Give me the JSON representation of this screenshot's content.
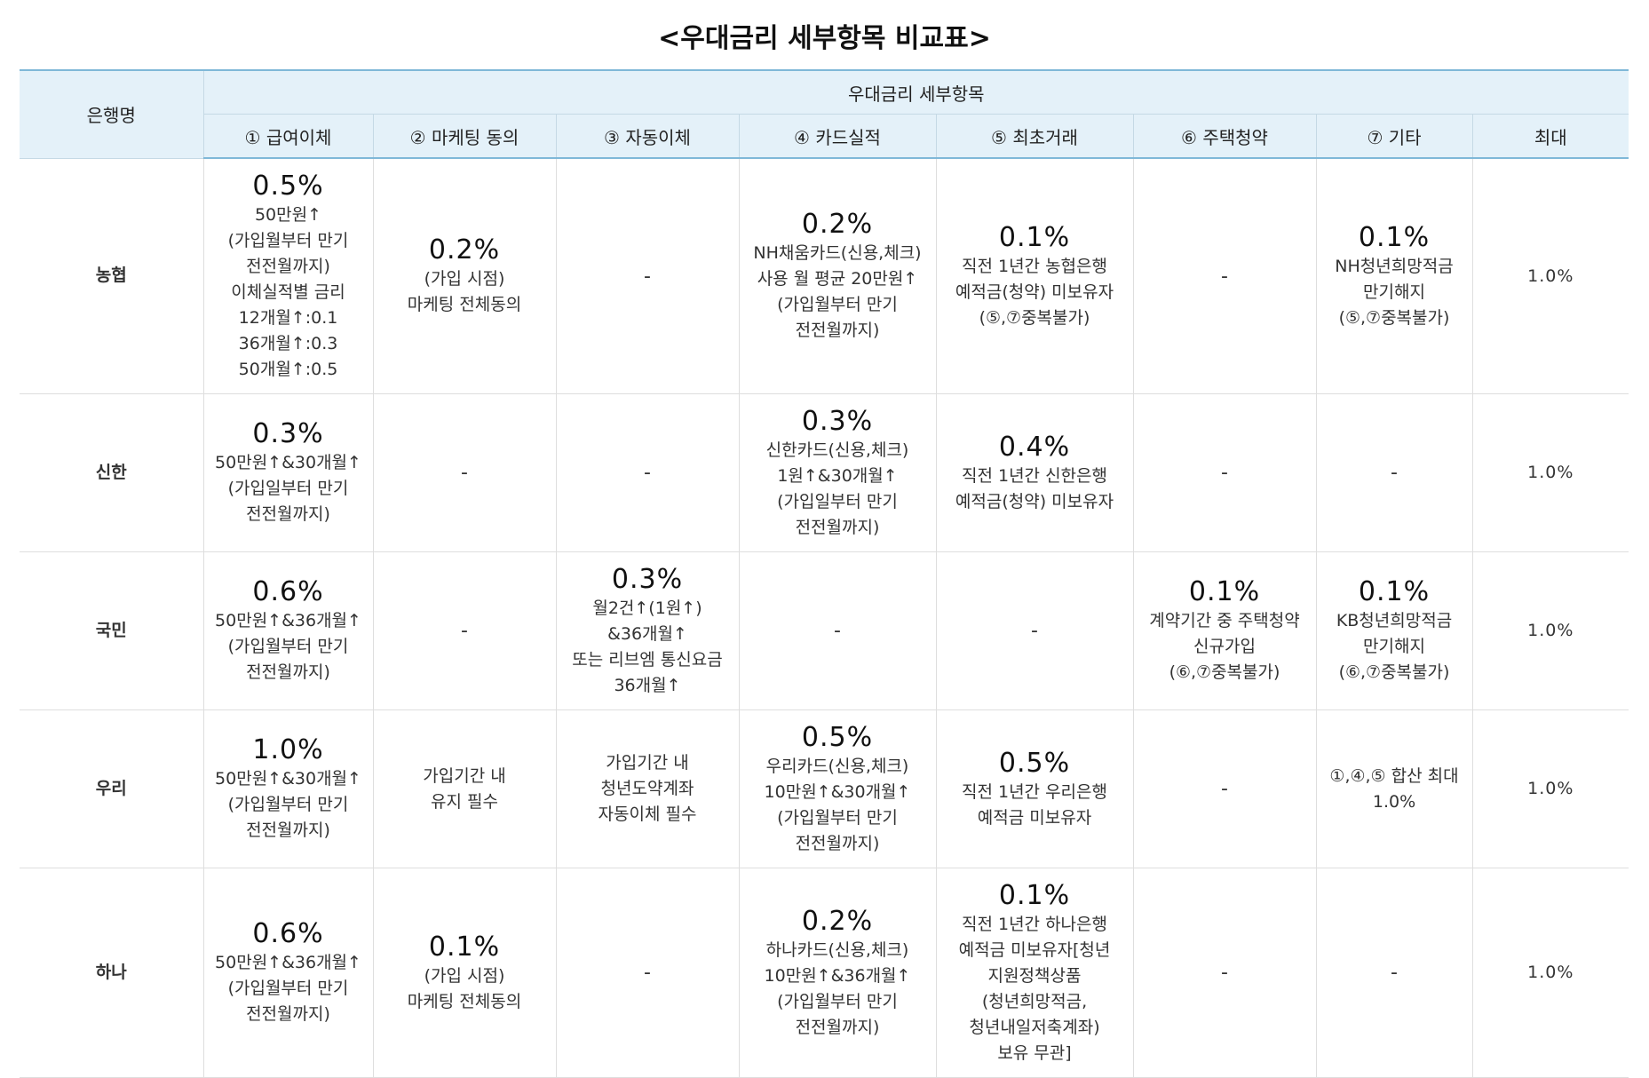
{
  "title": "<우대금리 세부항목 비교표>",
  "header": {
    "bank_col": "은행명",
    "group_label": "우대금리 세부항목",
    "columns": [
      "① 급여이체",
      "② 마케팅 동의",
      "③ 자동이체",
      "④ 카드실적",
      "⑤ 최초거래",
      "⑥ 주택청약",
      "⑦ 기타",
      "최대"
    ]
  },
  "rows": [
    {
      "bank": "농협",
      "salary": {
        "rate": "0.5%",
        "lines": [
          "50만원↑",
          "(가입월부터 만기",
          "전전월까지)",
          "이체실적별 금리",
          "12개월↑:0.1",
          "36개월↑:0.3",
          "50개월↑:0.5"
        ]
      },
      "marketing": {
        "rate": "0.2%",
        "lines": [
          "(가입 시점)",
          "마케팅 전체동의"
        ]
      },
      "autotransfer": {
        "rate": "",
        "lines": [
          "-"
        ]
      },
      "card": {
        "rate": "0.2%",
        "lines": [
          "NH채움카드(신용,체크)",
          "사용 월 평균 20만원↑",
          "(가입월부터 만기",
          "전전월까지)"
        ]
      },
      "first": {
        "rate": "0.1%",
        "lines": [
          "직전 1년간 농협은행",
          "예적금(청약) 미보유자",
          "(⑤,⑦중복불가)"
        ]
      },
      "housing": {
        "rate": "",
        "lines": [
          "-"
        ]
      },
      "etc": {
        "rate": "0.1%",
        "lines": [
          "NH청년희망적금",
          "만기해지",
          "(⑤,⑦중복불가)"
        ]
      },
      "max": "1.0%"
    },
    {
      "bank": "신한",
      "salary": {
        "rate": "0.3%",
        "lines": [
          "50만원↑&30개월↑",
          "(가입일부터 만기",
          "전전월까지)"
        ]
      },
      "marketing": {
        "rate": "",
        "lines": [
          "-"
        ]
      },
      "autotransfer": {
        "rate": "",
        "lines": [
          "-"
        ]
      },
      "card": {
        "rate": "0.3%",
        "lines": [
          "신한카드(신용,체크)",
          "1원↑&30개월↑",
          "(가입일부터 만기",
          "전전월까지)"
        ]
      },
      "first": {
        "rate": "0.4%",
        "lines": [
          "직전 1년간 신한은행",
          "예적금(청약) 미보유자"
        ]
      },
      "housing": {
        "rate": "",
        "lines": [
          "-"
        ]
      },
      "etc": {
        "rate": "",
        "lines": [
          "-"
        ]
      },
      "max": "1.0%"
    },
    {
      "bank": "국민",
      "salary": {
        "rate": "0.6%",
        "lines": [
          "50만원↑&36개월↑",
          "(가입월부터 만기",
          "전전월까지)"
        ]
      },
      "marketing": {
        "rate": "",
        "lines": [
          "-"
        ]
      },
      "autotransfer": {
        "rate": "0.3%",
        "lines": [
          "월2건↑(1원↑)",
          "&36개월↑",
          "또는 리브엠 통신요금",
          "36개월↑"
        ]
      },
      "card": {
        "rate": "",
        "lines": [
          "-"
        ]
      },
      "first": {
        "rate": "",
        "lines": [
          "-"
        ]
      },
      "housing": {
        "rate": "0.1%",
        "lines": [
          "계약기간 중 주택청약",
          "신규가입",
          "(⑥,⑦중복불가)"
        ]
      },
      "etc": {
        "rate": "0.1%",
        "lines": [
          "KB청년희망적금",
          "만기해지",
          "(⑥,⑦중복불가)"
        ]
      },
      "max": "1.0%"
    },
    {
      "bank": "우리",
      "salary": {
        "rate": "1.0%",
        "lines": [
          "50만원↑&30개월↑",
          "(가입월부터 만기",
          "전전월까지)"
        ]
      },
      "marketing": {
        "rate": "",
        "lines": [
          "가입기간 내",
          "유지 필수"
        ]
      },
      "autotransfer": {
        "rate": "",
        "lines": [
          "가입기간 내",
          "청년도약계좌",
          "자동이체 필수"
        ]
      },
      "card": {
        "rate": "0.5%",
        "lines": [
          "우리카드(신용,체크)",
          "10만원↑&30개월↑",
          "(가입월부터 만기",
          "전전월까지)"
        ]
      },
      "first": {
        "rate": "0.5%",
        "lines": [
          "직전 1년간 우리은행",
          "예적금 미보유자"
        ]
      },
      "housing": {
        "rate": "",
        "lines": [
          "-"
        ]
      },
      "etc": {
        "rate": "",
        "lines": [
          "①,④,⑤ 합산 최대",
          "1.0%"
        ]
      },
      "max": "1.0%"
    },
    {
      "bank": "하나",
      "salary": {
        "rate": "0.6%",
        "lines": [
          "50만원↑&36개월↑",
          "(가입월부터 만기",
          "전전월까지)"
        ]
      },
      "marketing": {
        "rate": "0.1%",
        "lines": [
          "(가입 시점)",
          "마케팅 전체동의"
        ]
      },
      "autotransfer": {
        "rate": "",
        "lines": [
          "-"
        ]
      },
      "card": {
        "rate": "0.2%",
        "lines": [
          "하나카드(신용,체크)",
          "10만원↑&36개월↑",
          "(가입월부터 만기",
          "전전월까지)"
        ]
      },
      "first": {
        "rate": "0.1%",
        "lines": [
          "직전 1년간 하나은행",
          "예적금 미보유자[청년",
          "지원정책상품",
          "(청년희망적금,",
          "청년내일저축계좌)",
          "보유 무관]"
        ]
      },
      "housing": {
        "rate": "",
        "lines": [
          "-"
        ]
      },
      "etc": {
        "rate": "",
        "lines": [
          "-"
        ]
      },
      "max": "1.0%"
    }
  ]
}
